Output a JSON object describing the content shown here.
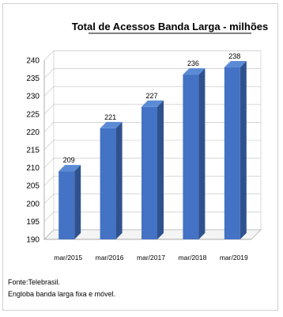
{
  "chart_data": {
    "type": "bar",
    "title": "Total de Acessos Banda Larga - milhões",
    "categories": [
      "mar/2015",
      "mar/2016",
      "mar/2017",
      "mar/2018",
      "mar/2019"
    ],
    "values": [
      209,
      221,
      227,
      236,
      238
    ],
    "data_labels": [
      "209",
      "221",
      "227",
      "236",
      "238"
    ],
    "y_ticks": [
      "190",
      "195",
      "200",
      "205",
      "210",
      "215",
      "220",
      "225",
      "230",
      "235",
      "240"
    ],
    "ylim": [
      190,
      240
    ],
    "grid": true,
    "style": "3d-column",
    "colors": {
      "bar": "#4472c4",
      "bar_side": "#2f528f",
      "bar_top": "#5b8bd6"
    }
  },
  "notes": {
    "source": "Fonte:Telebrasil.",
    "scope": "Engloba banda larga fixa e móvel."
  }
}
